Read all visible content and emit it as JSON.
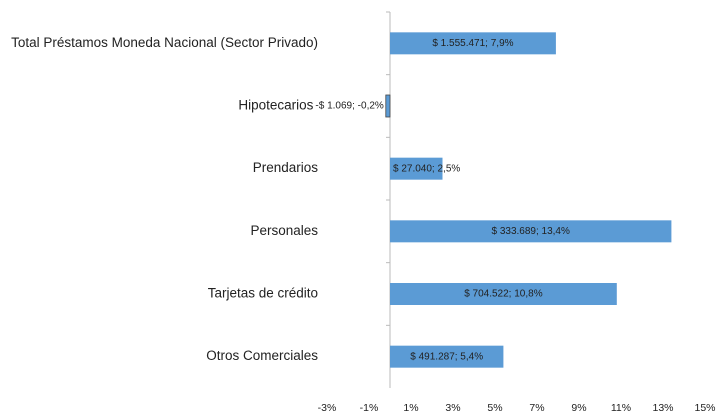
{
  "chart_data": {
    "type": "bar",
    "orientation": "horizontal",
    "categories": [
      "Total Préstamos Moneda Nacional (Sector Privado)",
      "Hipotecarios",
      "Prendarios",
      "Personales",
      "Tarjetas de crédito",
      "Otros Comerciales"
    ],
    "values": [
      7.9,
      -0.2,
      2.5,
      13.4,
      10.8,
      5.4
    ],
    "value_labels": [
      "$ 1.555.471; 7,9%",
      "-$ 1.069; -0,2%",
      "$ 27.040; 2,5%",
      "$ 333.689; 13,4%",
      "$ 704.522; 10,8%",
      "$ 491.287; 5,4%"
    ],
    "color": "#5b9bd5",
    "xlim": [
      -3,
      15
    ],
    "xticks": [
      {
        "value": -3,
        "label": "-3%"
      },
      {
        "value": -1,
        "label": "-1%"
      },
      {
        "value": 1,
        "label": "1%"
      },
      {
        "value": 3,
        "label": "3%"
      },
      {
        "value": 5,
        "label": "5%"
      },
      {
        "value": 7,
        "label": "7%"
      },
      {
        "value": 9,
        "label": "9%"
      },
      {
        "value": 11,
        "label": "11%"
      },
      {
        "value": 13,
        "label": "13%"
      },
      {
        "value": 15,
        "label": "15%"
      }
    ],
    "grid": false
  }
}
